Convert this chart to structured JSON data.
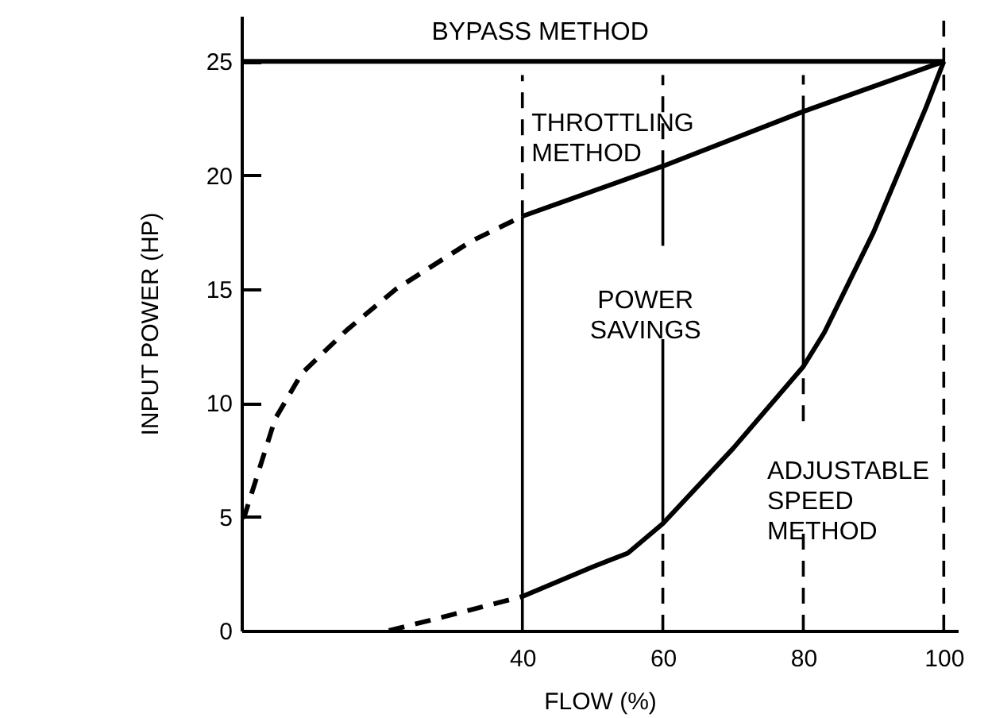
{
  "chart_data": {
    "type": "line",
    "xlabel": "FLOW (%)",
    "ylabel": "INPUT POWER (HP)",
    "xlim": [
      0,
      102
    ],
    "ylim": [
      0,
      27
    ],
    "xticks": [
      40,
      60,
      80,
      100
    ],
    "yticks": [
      0,
      5,
      10,
      15,
      20,
      25
    ],
    "series": [
      {
        "color": "#000000",
        "line_style": "solid",
        "x": [
          0,
          100
        ],
        "values": [
          25,
          25
        ]
      },
      {
        "color": "#000000",
        "line_style": "solid",
        "x": [
          40,
          60,
          80,
          100
        ],
        "values": [
          18.2,
          20.4,
          22.8,
          25
        ]
      },
      {
        "color": "#000000",
        "line_style": "dashed",
        "x": [
          0,
          0.4,
          4.8,
          8.6,
          15,
          22,
          32.7,
          40
        ],
        "values": [
          5,
          5,
          9.3,
          11.3,
          13.2,
          15,
          17.1,
          18.2
        ]
      },
      {
        "color": "#000000",
        "line_style": "solid",
        "x": [
          40,
          50,
          55,
          60,
          70,
          80,
          83,
          90,
          97.5,
          100
        ],
        "values": [
          1.5,
          2.8,
          3.4,
          4.7,
          8,
          11.6,
          13.1,
          17.5,
          23,
          25
        ]
      },
      {
        "color": "#000000",
        "line_style": "dashed",
        "x": [
          21,
          30,
          40
        ],
        "values": [
          0,
          0.7,
          1.5
        ]
      },
      {
        "color": "#000000",
        "line_style": "solid",
        "x": [
          40,
          40
        ],
        "values": [
          0,
          18.2
        ]
      },
      {
        "color": "#000000",
        "line_style": "dashed",
        "x": [
          40,
          40
        ],
        "values": [
          18.2,
          24.4
        ]
      },
      {
        "color": "#000000",
        "line_style": "dashed",
        "x": [
          60,
          60
        ],
        "values": [
          0,
          4.7
        ]
      },
      {
        "color": "#000000",
        "line_style": "solid",
        "x": [
          60,
          60
        ],
        "values": [
          4.7,
          12.8
        ]
      },
      {
        "color": "#000000",
        "line_style": "solid",
        "x": [
          60,
          60
        ],
        "values": [
          16.9,
          20.4
        ]
      },
      {
        "color": "#000000",
        "line_style": "dashed",
        "x": [
          60,
          60
        ],
        "values": [
          20.4,
          24.4
        ]
      },
      {
        "color": "#000000",
        "line_style": "dashed",
        "x": [
          80,
          80
        ],
        "values": [
          0,
          4.6
        ]
      },
      {
        "color": "#000000",
        "line_style": "dashed",
        "x": [
          80,
          80
        ],
        "values": [
          9.2,
          11.6
        ]
      },
      {
        "color": "#000000",
        "line_style": "solid",
        "x": [
          80,
          80
        ],
        "values": [
          11.6,
          22.8
        ]
      },
      {
        "color": "#000000",
        "line_style": "dashed",
        "x": [
          80,
          80
        ],
        "values": [
          22.8,
          24.4
        ]
      },
      {
        "color": "#000000",
        "line_style": "dashed",
        "x": [
          100,
          100
        ],
        "values": [
          0,
          27
        ]
      }
    ],
    "annotations": [
      "BYPASS METHOD",
      "THROTTLING\nMETHOD",
      "POWER\nSAVINGS",
      "ADJUSTABLE\nSPEED\nMETHOD"
    ]
  }
}
